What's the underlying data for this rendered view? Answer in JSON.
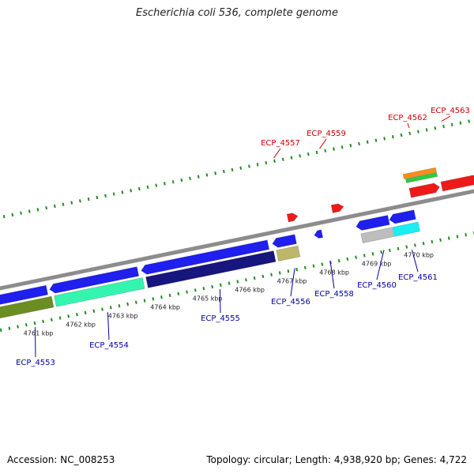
{
  "title": "Escherichia coli 536, complete genome",
  "footer": {
    "accession_label": "Accession:",
    "accession": "NC_008253",
    "topology_label": "Topology:",
    "topology": "circular",
    "length_label": "Length:",
    "length": "4,938,920 bp",
    "genes_label": "Genes:",
    "genes": "4,722"
  },
  "ticks": [
    {
      "label": "4761 kbp",
      "value": 4761
    },
    {
      "label": "4762 kbp",
      "value": 4762
    },
    {
      "label": "4763 kbp",
      "value": 4763
    },
    {
      "label": "4764 kbp",
      "value": 4764
    },
    {
      "label": "4765 kbp",
      "value": 4765
    },
    {
      "label": "4766 kbp",
      "value": 4766
    },
    {
      "label": "4767 kbp",
      "value": 4767
    },
    {
      "label": "4768 kbp",
      "value": 4768
    },
    {
      "label": "4769 kbp",
      "value": 4769
    },
    {
      "label": "4770 kbp",
      "value": 4770
    }
  ],
  "gene_labels": [
    {
      "name": "ECP_4553",
      "strand": "reverse"
    },
    {
      "name": "ECP_4554",
      "strand": "reverse"
    },
    {
      "name": "ECP_4555",
      "strand": "reverse"
    },
    {
      "name": "ECP_4556",
      "strand": "reverse"
    },
    {
      "name": "ECP_4557",
      "strand": "forward"
    },
    {
      "name": "ECP_4558",
      "strand": "reverse"
    },
    {
      "name": "ECP_4559",
      "strand": "forward"
    },
    {
      "name": "ECP_4560",
      "strand": "reverse"
    },
    {
      "name": "ECP_4561",
      "strand": "reverse"
    },
    {
      "name": "ECP_4562",
      "strand": "forward"
    },
    {
      "name": "ECP_4563",
      "strand": "forward"
    }
  ],
  "colors": {
    "backbone": "#8c8c8c",
    "tick": "#228b22",
    "forward_label": "#cc0000",
    "reverse_label": "#00009c",
    "blue": "#1f1fee",
    "navy": "#16167e",
    "olive": "#6b8e23",
    "aquamarine": "#33f5b0",
    "khaki": "#bdb76b",
    "silver": "#bdbdbd",
    "cyan": "#19eef2",
    "red": "#ee1a1a",
    "orange": "#ff8c1a",
    "green": "#2ecc40"
  }
}
